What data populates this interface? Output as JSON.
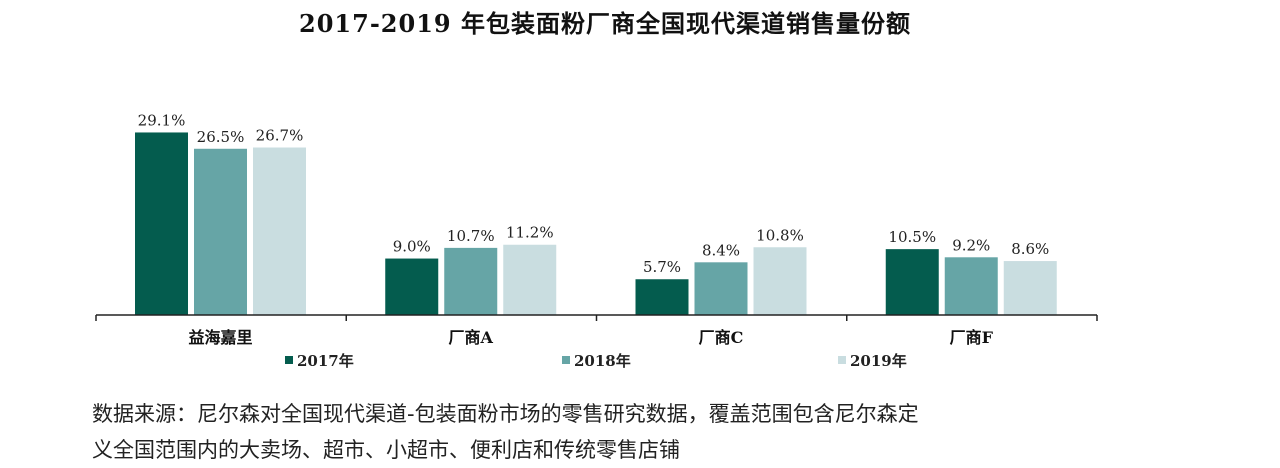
{
  "chart_data": {
    "type": "bar",
    "title": "2017-2019 年包装面粉厂商全国现代渠道销售量份额",
    "categories": [
      "益海嘉里",
      "厂商A",
      "厂商C",
      "厂商F"
    ],
    "series": [
      {
        "name": "2017年",
        "values": [
          29.1,
          9.0,
          5.7,
          10.5
        ],
        "labels": [
          "29.1%",
          "9.0%",
          "5.7%",
          "10.5%"
        ],
        "color": "#045c4e"
      },
      {
        "name": "2018年",
        "values": [
          26.5,
          10.7,
          8.4,
          9.2
        ],
        "labels": [
          "26.5%",
          "10.7%",
          "8.4%",
          "9.2%"
        ],
        "color": "#66a5a6"
      },
      {
        "name": "2019年",
        "values": [
          26.7,
          11.2,
          10.8,
          8.6
        ],
        "labels": [
          "26.7%",
          "11.2%",
          "10.8%",
          "8.6%"
        ],
        "color": "#c9dde0"
      }
    ],
    "ylim": [
      0,
      33
    ],
    "grid": false,
    "legend": "bottom"
  },
  "source_note": {
    "line1": "数据来源：尼尔森对全国现代渠道-包装面粉市场的零售研究数据，覆盖范围包含尼尔森定",
    "line2": "义全国范围内的大卖场、超市、小超市、便利店和传统零售店铺"
  }
}
